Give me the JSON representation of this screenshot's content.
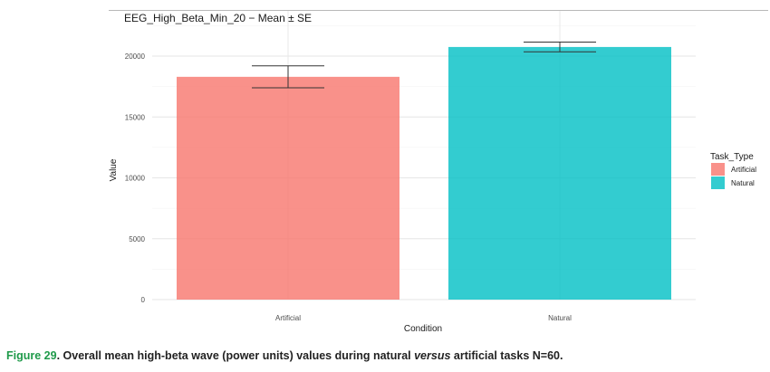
{
  "chart_data": {
    "type": "bar",
    "title": "EEG_High_Beta_Min_20 − Mean ± SE",
    "xlabel": "Condition",
    "ylabel": "Value",
    "categories": [
      "Artificial",
      "Natural"
    ],
    "values": [
      18300,
      20750
    ],
    "error_bars": [
      {
        "category": "Artificial",
        "lower": 17400,
        "upper": 19200
      },
      {
        "category": "Natural",
        "lower": 20350,
        "upper": 21150
      }
    ],
    "ylim": [
      0,
      22500
    ],
    "yticks": [
      {
        "value": 0,
        "label": "0"
      },
      {
        "value": 5000,
        "label": "5000"
      },
      {
        "value": 10000,
        "label": "10000"
      },
      {
        "value": 15000,
        "label": "15000"
      },
      {
        "value": 20000,
        "label": "20000"
      }
    ],
    "grid": true,
    "legend": {
      "title": "Task_Type",
      "placement": "right",
      "entries": [
        {
          "label": "Artificial",
          "color": "#F8766D"
        },
        {
          "label": "Natural",
          "color": "#00BFC4"
        }
      ]
    },
    "colors": {
      "Artificial": "#F8766D",
      "Natural": "#00BFC4"
    }
  },
  "caption": {
    "figure_label": "Figure 29",
    "text_before": ". Overall mean high-beta wave (power units) values during natural ",
    "emphasis": "versus",
    "text_after": " artificial tasks N=60."
  }
}
